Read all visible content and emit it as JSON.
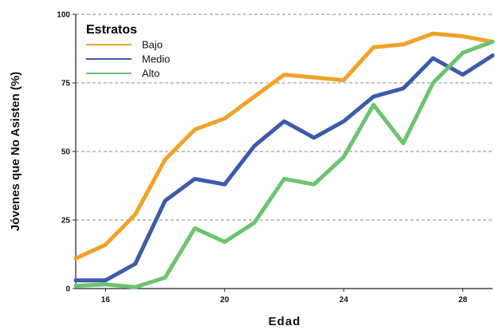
{
  "chart_data": {
    "type": "line",
    "title": "",
    "xlabel": "Edad",
    "ylabel": "Jóvenes que No Asisten (%)",
    "xlim": [
      15,
      29
    ],
    "ylim": [
      0,
      100
    ],
    "xticks": [
      16,
      20,
      24,
      28
    ],
    "yticks": [
      0,
      25,
      50,
      75,
      100
    ],
    "grid": "horizontal dashed at 25, 50, 75",
    "legend": {
      "title": "Estratos",
      "position": "top-left"
    },
    "x": [
      15,
      16,
      17,
      18,
      19,
      20,
      21,
      22,
      23,
      24,
      25,
      26,
      27,
      28,
      29
    ],
    "series": [
      {
        "name": "Bajo",
        "color": "#f0a227",
        "values": [
          11,
          16,
          27,
          47,
          58,
          62,
          70,
          78,
          77,
          76,
          88,
          89,
          93,
          92,
          90
        ]
      },
      {
        "name": "Medio",
        "color": "#3d5ba9",
        "values": [
          3,
          3,
          9,
          32,
          40,
          38,
          52,
          61,
          55,
          61,
          70,
          73,
          84,
          78,
          85
        ]
      },
      {
        "name": "Alto",
        "color": "#6cc46f",
        "values": [
          1,
          1.5,
          0.5,
          4,
          22,
          17,
          24,
          40,
          38,
          48,
          67,
          53,
          75,
          86,
          90
        ]
      }
    ]
  }
}
